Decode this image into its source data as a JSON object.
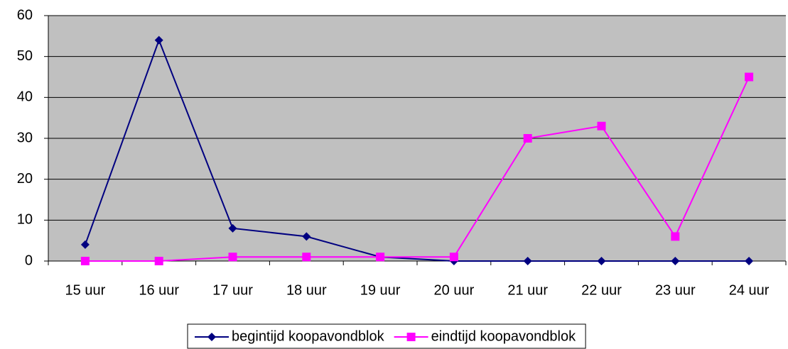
{
  "chart_data": {
    "type": "line",
    "categories": [
      "15 uur",
      "16 uur",
      "17 uur",
      "18 uur",
      "19 uur",
      "20 uur",
      "21 uur",
      "22 uur",
      "23 uur",
      "24 uur"
    ],
    "series": [
      {
        "name": "begintijd koopavondblok",
        "color": "#000080",
        "marker": "diamond",
        "values": [
          4,
          54,
          8,
          6,
          1,
          0,
          0,
          0,
          0,
          0
        ]
      },
      {
        "name": "eindtijd koopavondblok",
        "color": "#ff00ff",
        "marker": "square",
        "values": [
          0,
          0,
          1,
          1,
          1,
          1,
          30,
          33,
          6,
          45
        ]
      }
    ],
    "ylim": [
      0,
      60
    ],
    "yticks": [
      0,
      10,
      20,
      30,
      40,
      50,
      60
    ],
    "grid": true,
    "legend": "bottom"
  }
}
